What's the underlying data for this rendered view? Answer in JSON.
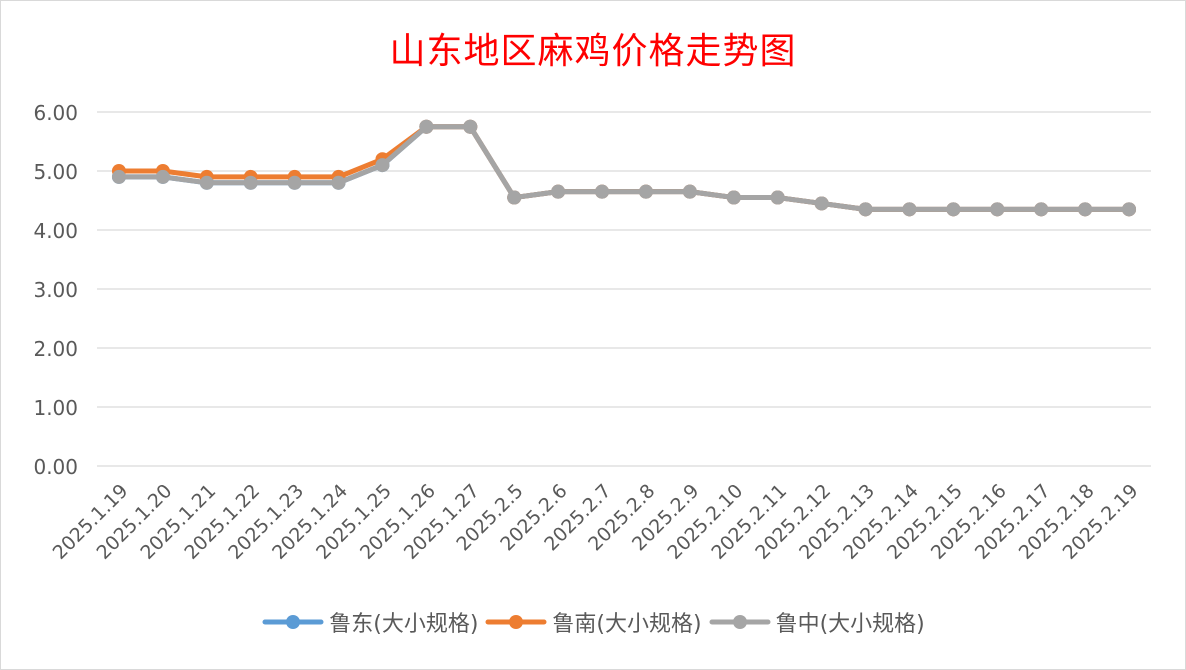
{
  "chart_data": {
    "type": "line",
    "title": "山东地区麻鸡价格走势图",
    "xlabel": "",
    "ylabel": "",
    "ylim": [
      0,
      6
    ],
    "yticks": [
      "0.00",
      "1.00",
      "2.00",
      "3.00",
      "4.00",
      "5.00",
      "6.00"
    ],
    "grid": "horizontal",
    "legend_position": "bottom",
    "categories": [
      "2025.1.19",
      "2025.1.20",
      "2025.1.21",
      "2025.1.22",
      "2025.1.23",
      "2025.1.24",
      "2025.1.25",
      "2025.1.26",
      "2025.1.27",
      "2025.2.5",
      "2025.2.6",
      "2025.2.7",
      "2025.2.8",
      "2025.2.9",
      "2025.2.10",
      "2025.2.11",
      "2025.2.12",
      "2025.2.13",
      "2025.2.14",
      "2025.2.15",
      "2025.2.16",
      "2025.2.17",
      "2025.2.18",
      "2025.2.19"
    ],
    "series": [
      {
        "name": "鲁东(大小规格)",
        "color": "#5b9bd5",
        "values": [
          4.9,
          4.9,
          4.8,
          4.8,
          4.8,
          4.8,
          5.1,
          5.75,
          5.75,
          4.55,
          4.65,
          4.65,
          4.65,
          4.65,
          4.55,
          4.55,
          4.45,
          4.35,
          4.35,
          4.35,
          4.35,
          4.35,
          4.35,
          4.35
        ]
      },
      {
        "name": "鲁南(大小规格)",
        "color": "#ed7d31",
        "values": [
          5.0,
          5.0,
          4.9,
          4.9,
          4.9,
          4.9,
          5.2,
          5.75,
          5.75,
          4.55,
          4.65,
          4.65,
          4.65,
          4.65,
          4.55,
          4.55,
          4.45,
          4.35,
          4.35,
          4.35,
          4.35,
          4.35,
          4.35,
          4.35
        ]
      },
      {
        "name": "鲁中(大小规格)",
        "color": "#a5a5a5",
        "values": [
          4.9,
          4.9,
          4.8,
          4.8,
          4.8,
          4.8,
          5.1,
          5.75,
          5.75,
          4.55,
          4.65,
          4.65,
          4.65,
          4.65,
          4.55,
          4.55,
          4.45,
          4.35,
          4.35,
          4.35,
          4.35,
          4.35,
          4.35,
          4.35
        ]
      }
    ]
  }
}
